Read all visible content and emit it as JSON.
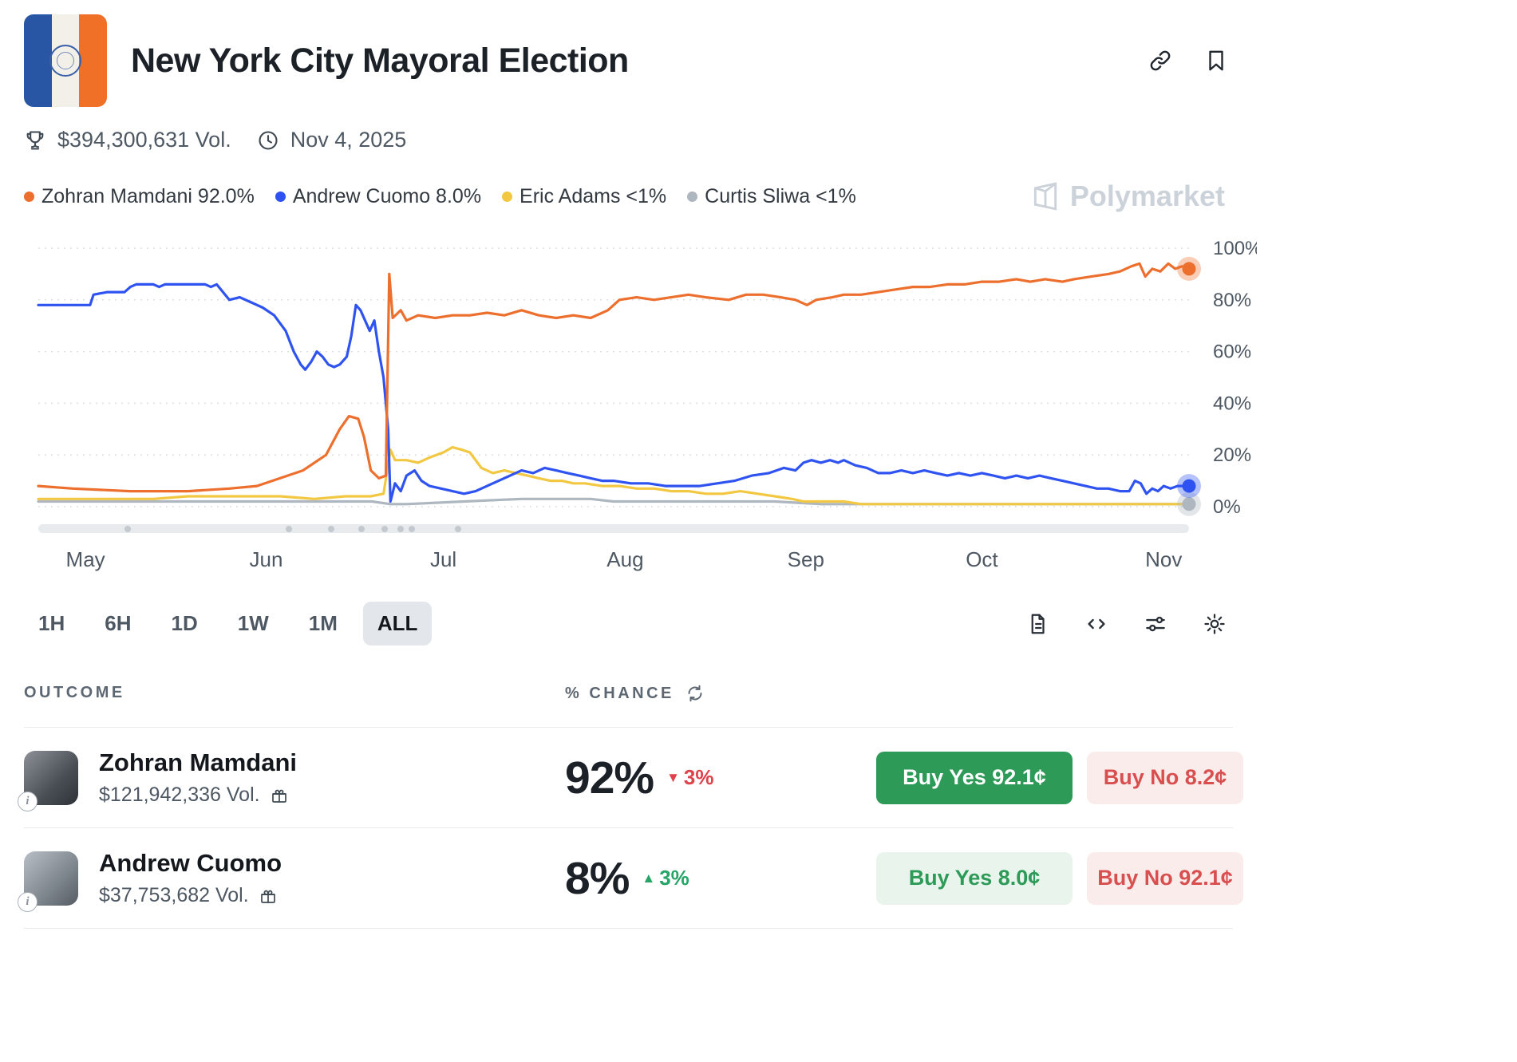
{
  "header": {
    "title": "New York City Mayoral Election",
    "volume": "$394,300,631 Vol.",
    "date": "Nov 4, 2025"
  },
  "watermark": "Polymarket",
  "legend": [
    {
      "label": "Zohran Mamdani 92.0%",
      "color": "#ed6f2e"
    },
    {
      "label": "Andrew Cuomo 8.0%",
      "color": "#2e53f1"
    },
    {
      "label": "Eric Adams <1%",
      "color": "#f2c843"
    },
    {
      "label": "Curtis Sliwa <1%",
      "color": "#aeb7bf"
    }
  ],
  "chart_data": {
    "type": "line",
    "title": "",
    "xlabel": "",
    "ylabel": "% chance",
    "ylim": [
      0,
      100
    ],
    "yticks": [
      0,
      20,
      40,
      60,
      80,
      100
    ],
    "grid": "horizontal-dotted",
    "legend_position": "top-left",
    "x_range": "May 2025 - Nov 4, 2025 (x given as fraction of range)",
    "months": [
      {
        "label": "May",
        "pos": 0.041
      },
      {
        "label": "Jun",
        "pos": 0.198
      },
      {
        "label": "Jul",
        "pos": 0.352
      },
      {
        "label": "Aug",
        "pos": 0.51
      },
      {
        "label": "Sep",
        "pos": 0.667
      },
      {
        "label": "Oct",
        "pos": 0.82
      },
      {
        "label": "Nov",
        "pos": 0.978
      }
    ],
    "scrubber_dots": [
      0.075,
      0.215,
      0.252,
      0.278,
      0.298,
      0.312,
      0.322,
      0.362
    ],
    "series": [
      {
        "name": "Zohran Mamdani",
        "color": "#ed6f2e",
        "end_value": 92,
        "end_dot": true,
        "points": [
          [
            0,
            8
          ],
          [
            0.03,
            7
          ],
          [
            0.08,
            6
          ],
          [
            0.13,
            6
          ],
          [
            0.166,
            7
          ],
          [
            0.19,
            8
          ],
          [
            0.21,
            11
          ],
          [
            0.23,
            14
          ],
          [
            0.25,
            20
          ],
          [
            0.262,
            30
          ],
          [
            0.27,
            35
          ],
          [
            0.278,
            34
          ],
          [
            0.283,
            27
          ],
          [
            0.289,
            14
          ],
          [
            0.296,
            11
          ],
          [
            0.302,
            12
          ],
          [
            0.305,
            90
          ],
          [
            0.308,
            73
          ],
          [
            0.315,
            76
          ],
          [
            0.32,
            72
          ],
          [
            0.33,
            74
          ],
          [
            0.345,
            73
          ],
          [
            0.36,
            74
          ],
          [
            0.375,
            74
          ],
          [
            0.39,
            75
          ],
          [
            0.405,
            74
          ],
          [
            0.42,
            76
          ],
          [
            0.435,
            74
          ],
          [
            0.45,
            73
          ],
          [
            0.465,
            74
          ],
          [
            0.48,
            73
          ],
          [
            0.495,
            76
          ],
          [
            0.505,
            80
          ],
          [
            0.52,
            81
          ],
          [
            0.535,
            80
          ],
          [
            0.55,
            81
          ],
          [
            0.565,
            82
          ],
          [
            0.58,
            81
          ],
          [
            0.6,
            80
          ],
          [
            0.615,
            82
          ],
          [
            0.63,
            82
          ],
          [
            0.645,
            81
          ],
          [
            0.658,
            80
          ],
          [
            0.668,
            78
          ],
          [
            0.676,
            80
          ],
          [
            0.69,
            81
          ],
          [
            0.7,
            82
          ],
          [
            0.715,
            82
          ],
          [
            0.73,
            83
          ],
          [
            0.745,
            84
          ],
          [
            0.76,
            85
          ],
          [
            0.775,
            85
          ],
          [
            0.79,
            86
          ],
          [
            0.805,
            86
          ],
          [
            0.82,
            87
          ],
          [
            0.835,
            87
          ],
          [
            0.85,
            88
          ],
          [
            0.862,
            87
          ],
          [
            0.875,
            88
          ],
          [
            0.89,
            87
          ],
          [
            0.9,
            88
          ],
          [
            0.915,
            89
          ],
          [
            0.93,
            90
          ],
          [
            0.94,
            91
          ],
          [
            0.95,
            93
          ],
          [
            0.957,
            94
          ],
          [
            0.962,
            89
          ],
          [
            0.968,
            92
          ],
          [
            0.975,
            91
          ],
          [
            0.982,
            94
          ],
          [
            0.988,
            92
          ],
          [
            0.994,
            93
          ],
          [
            1,
            92
          ]
        ]
      },
      {
        "name": "Andrew Cuomo",
        "color": "#2e53f1",
        "end_value": 8,
        "end_dot": true,
        "points": [
          [
            0,
            78
          ],
          [
            0.02,
            78
          ],
          [
            0.045,
            78
          ],
          [
            0.048,
            82
          ],
          [
            0.06,
            83
          ],
          [
            0.075,
            83
          ],
          [
            0.08,
            85
          ],
          [
            0.085,
            86
          ],
          [
            0.1,
            86
          ],
          [
            0.105,
            85
          ],
          [
            0.11,
            86
          ],
          [
            0.13,
            86
          ],
          [
            0.145,
            86
          ],
          [
            0.15,
            85
          ],
          [
            0.155,
            86
          ],
          [
            0.166,
            80
          ],
          [
            0.175,
            81
          ],
          [
            0.185,
            79
          ],
          [
            0.195,
            77
          ],
          [
            0.205,
            74
          ],
          [
            0.215,
            68
          ],
          [
            0.222,
            60
          ],
          [
            0.228,
            55
          ],
          [
            0.232,
            53
          ],
          [
            0.237,
            56
          ],
          [
            0.242,
            60
          ],
          [
            0.247,
            58
          ],
          [
            0.252,
            55
          ],
          [
            0.257,
            54
          ],
          [
            0.262,
            55
          ],
          [
            0.268,
            58
          ],
          [
            0.272,
            66
          ],
          [
            0.276,
            78
          ],
          [
            0.28,
            76
          ],
          [
            0.284,
            72
          ],
          [
            0.288,
            68
          ],
          [
            0.292,
            72
          ],
          [
            0.296,
            60
          ],
          [
            0.3,
            50
          ],
          [
            0.304,
            30
          ],
          [
            0.306,
            2
          ],
          [
            0.31,
            9
          ],
          [
            0.315,
            6
          ],
          [
            0.32,
            12
          ],
          [
            0.327,
            14
          ],
          [
            0.333,
            10
          ],
          [
            0.34,
            8
          ],
          [
            0.35,
            7
          ],
          [
            0.36,
            6
          ],
          [
            0.37,
            5
          ],
          [
            0.38,
            6
          ],
          [
            0.39,
            8
          ],
          [
            0.4,
            10
          ],
          [
            0.41,
            12
          ],
          [
            0.42,
            14
          ],
          [
            0.43,
            13
          ],
          [
            0.44,
            15
          ],
          [
            0.45,
            14
          ],
          [
            0.46,
            13
          ],
          [
            0.47,
            12
          ],
          [
            0.48,
            11
          ],
          [
            0.49,
            10
          ],
          [
            0.5,
            10
          ],
          [
            0.515,
            9
          ],
          [
            0.53,
            9
          ],
          [
            0.545,
            8
          ],
          [
            0.56,
            8
          ],
          [
            0.575,
            8
          ],
          [
            0.59,
            9
          ],
          [
            0.605,
            10
          ],
          [
            0.62,
            12
          ],
          [
            0.635,
            13
          ],
          [
            0.648,
            15
          ],
          [
            0.658,
            14
          ],
          [
            0.665,
            17
          ],
          [
            0.672,
            18
          ],
          [
            0.68,
            17
          ],
          [
            0.688,
            18
          ],
          [
            0.695,
            17
          ],
          [
            0.7,
            18
          ],
          [
            0.71,
            16
          ],
          [
            0.72,
            15
          ],
          [
            0.73,
            13
          ],
          [
            0.74,
            13
          ],
          [
            0.75,
            14
          ],
          [
            0.76,
            13
          ],
          [
            0.77,
            14
          ],
          [
            0.78,
            13
          ],
          [
            0.79,
            12
          ],
          [
            0.8,
            13
          ],
          [
            0.81,
            12
          ],
          [
            0.82,
            13
          ],
          [
            0.83,
            12
          ],
          [
            0.84,
            11
          ],
          [
            0.85,
            12
          ],
          [
            0.86,
            11
          ],
          [
            0.87,
            12
          ],
          [
            0.88,
            11
          ],
          [
            0.89,
            10
          ],
          [
            0.9,
            9
          ],
          [
            0.91,
            8
          ],
          [
            0.92,
            7
          ],
          [
            0.93,
            7
          ],
          [
            0.94,
            6
          ],
          [
            0.948,
            6
          ],
          [
            0.953,
            10
          ],
          [
            0.958,
            9
          ],
          [
            0.963,
            5
          ],
          [
            0.968,
            7
          ],
          [
            0.973,
            6
          ],
          [
            0.978,
            8
          ],
          [
            0.984,
            7
          ],
          [
            0.99,
            8
          ],
          [
            1,
            8
          ]
        ]
      },
      {
        "name": "Eric Adams",
        "color": "#f2c843",
        "end_value": 1,
        "end_dot": false,
        "points": [
          [
            0,
            3
          ],
          [
            0.05,
            3
          ],
          [
            0.1,
            3
          ],
          [
            0.13,
            4
          ],
          [
            0.166,
            4
          ],
          [
            0.19,
            4
          ],
          [
            0.21,
            4
          ],
          [
            0.24,
            3
          ],
          [
            0.267,
            4
          ],
          [
            0.289,
            4
          ],
          [
            0.3,
            5
          ],
          [
            0.306,
            22
          ],
          [
            0.31,
            18
          ],
          [
            0.32,
            18
          ],
          [
            0.33,
            17
          ],
          [
            0.34,
            19
          ],
          [
            0.352,
            21
          ],
          [
            0.36,
            23
          ],
          [
            0.368,
            22
          ],
          [
            0.375,
            21
          ],
          [
            0.385,
            15
          ],
          [
            0.395,
            13
          ],
          [
            0.405,
            14
          ],
          [
            0.415,
            13
          ],
          [
            0.425,
            12
          ],
          [
            0.435,
            11
          ],
          [
            0.445,
            10
          ],
          [
            0.455,
            10
          ],
          [
            0.465,
            9
          ],
          [
            0.475,
            9
          ],
          [
            0.49,
            8
          ],
          [
            0.505,
            8
          ],
          [
            0.52,
            7
          ],
          [
            0.535,
            7
          ],
          [
            0.55,
            6
          ],
          [
            0.565,
            6
          ],
          [
            0.58,
            5
          ],
          [
            0.595,
            5
          ],
          [
            0.61,
            6
          ],
          [
            0.625,
            5
          ],
          [
            0.64,
            4
          ],
          [
            0.655,
            3
          ],
          [
            0.665,
            2
          ],
          [
            0.68,
            2
          ],
          [
            0.7,
            2
          ],
          [
            0.715,
            1
          ],
          [
            0.75,
            1
          ],
          [
            0.8,
            1
          ],
          [
            0.85,
            1
          ],
          [
            0.9,
            1
          ],
          [
            0.95,
            1
          ],
          [
            1,
            1
          ]
        ]
      },
      {
        "name": "Curtis Sliwa",
        "color": "#aeb7bf",
        "end_value": 1,
        "end_dot": true,
        "points": [
          [
            0,
            2
          ],
          [
            0.1,
            2
          ],
          [
            0.2,
            2
          ],
          [
            0.29,
            2
          ],
          [
            0.306,
            1
          ],
          [
            0.32,
            1
          ],
          [
            0.37,
            2
          ],
          [
            0.42,
            3
          ],
          [
            0.48,
            3
          ],
          [
            0.5,
            2
          ],
          [
            0.55,
            2
          ],
          [
            0.6,
            2
          ],
          [
            0.64,
            2
          ],
          [
            0.68,
            1
          ],
          [
            0.75,
            1
          ],
          [
            0.85,
            1
          ],
          [
            0.95,
            1
          ],
          [
            1,
            1
          ]
        ]
      }
    ]
  },
  "time_buttons": [
    "1H",
    "6H",
    "1D",
    "1W",
    "1M",
    "ALL"
  ],
  "selected_time": "ALL",
  "table": {
    "outcome_header": "OUTCOME",
    "chance_header": "% CHANCE",
    "rows": [
      {
        "name": "Zohran Mamdani",
        "volume": "$121,942,336 Vol.",
        "chance": "92%",
        "delta": "3%",
        "delta_dir": "down",
        "delta_icon": "▼",
        "buy_yes": "Buy Yes 92.1¢",
        "buy_no": "Buy No 8.2¢"
      },
      {
        "name": "Andrew Cuomo",
        "volume": "$37,753,682 Vol.",
        "chance": "8%",
        "delta": "3%",
        "delta_dir": "up",
        "delta_icon": "▲",
        "buy_yes": "Buy Yes 8.0¢",
        "buy_no": "Buy No 92.1¢"
      }
    ]
  },
  "colors": {
    "buy_yes_solid": "#2d9a57",
    "buy_yes_light_bg": "#e9f4ed",
    "buy_no_light_bg": "#fbecec",
    "buy_no_text": "#d94f50",
    "delta_down": "#e0424b",
    "delta_up": "#27a567"
  }
}
